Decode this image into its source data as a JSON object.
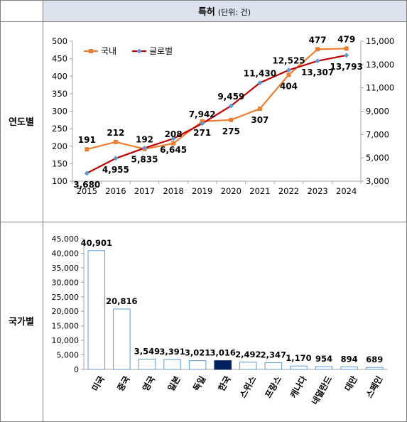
{
  "header": {
    "title": "특허",
    "unit": "(단위: 건)"
  },
  "rows": {
    "yearly_label": "연도별",
    "country_label": "국가별"
  },
  "colors": {
    "header_bg": "#dde3ee",
    "domestic_line": "#ed7d31",
    "global_line": "#c00000",
    "global_marker": "#5b9bd5",
    "bar_fill": "#ffffff",
    "bar_stroke": "#5b9bd5",
    "korea_fill": "#002060",
    "grid": "#d9d9d9",
    "border": "#7f7f7f"
  },
  "chart_data": [
    {
      "type": "line",
      "x": [
        "2015",
        "2016",
        "2017",
        "2018",
        "2019",
        "2020",
        "2021",
        "2022",
        "2023",
        "2024"
      ],
      "series": [
        {
          "name": "국내",
          "axis": "left",
          "values": [
            191,
            212,
            192,
            208,
            271,
            275,
            307,
            404,
            477,
            479
          ],
          "labels": [
            "191",
            "212",
            "192",
            "208",
            "271",
            "275",
            "307",
            "404",
            "477",
            "479"
          ]
        },
        {
          "name": "글로벌",
          "axis": "right",
          "values": [
            3680,
            4955,
            5835,
            6645,
            7942,
            9459,
            11430,
            12525,
            13307,
            13793
          ],
          "labels": [
            "3,680",
            "4,955",
            "5,835",
            "6,645",
            "7,942",
            "9,459",
            "11,430",
            "12,525",
            "13,307",
            "13,793"
          ]
        }
      ],
      "ylim_left": [
        100,
        500
      ],
      "yticks_left": [
        "100",
        "150",
        "200",
        "250",
        "300",
        "350",
        "400",
        "450",
        "500"
      ],
      "ylim_right": [
        3000,
        15000
      ],
      "yticks_right": [
        "3,000",
        "5,000",
        "7,000",
        "9,000",
        "11,000",
        "13,000",
        "15,000"
      ],
      "legend_position": "top-left",
      "grid": false
    },
    {
      "type": "bar",
      "categories": [
        "미국",
        "중국",
        "영국",
        "일본",
        "독일",
        "한국",
        "스위스",
        "프랑스",
        "캐나다",
        "네덜란드",
        "대만",
        "스페인"
      ],
      "values": [
        40901,
        20816,
        3549,
        3391,
        3021,
        3016,
        2492,
        2347,
        1170,
        954,
        894,
        689
      ],
      "labels": [
        "40,901",
        "20,816",
        "3,549",
        "3,391",
        "3,021",
        "3,016",
        "2,492",
        "2,347",
        "1,170",
        "954",
        "894",
        "689"
      ],
      "highlight": "한국",
      "ylim": [
        0,
        45000
      ],
      "yticks": [
        "0",
        "5,000",
        "10,000",
        "15,000",
        "20,000",
        "25,000",
        "30,000",
        "35,000",
        "40,000",
        "45,000"
      ],
      "grid": false
    }
  ]
}
